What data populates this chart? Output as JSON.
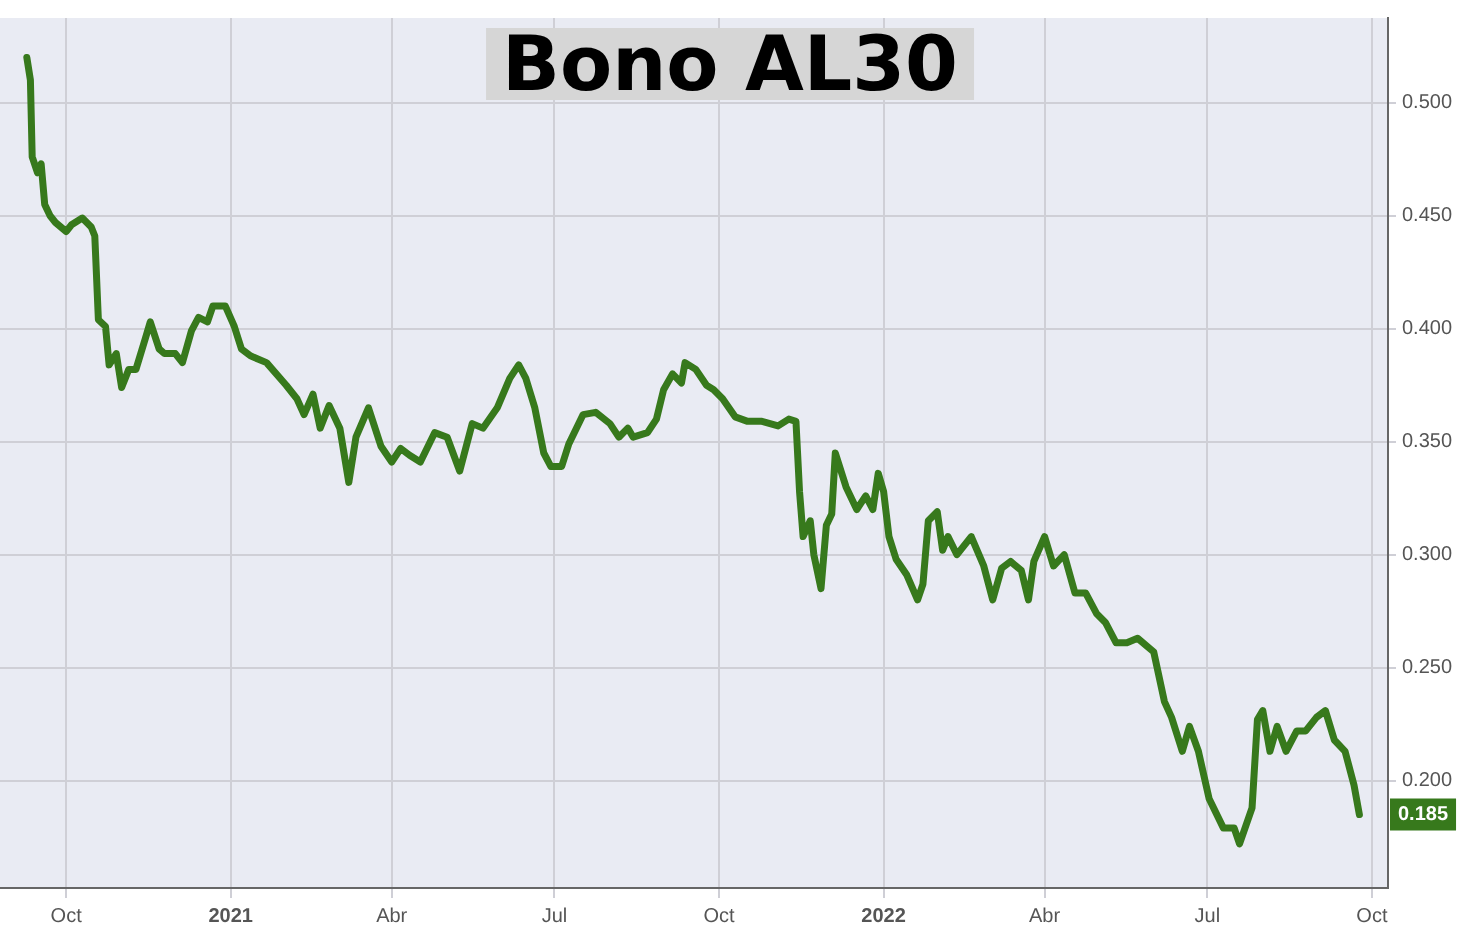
{
  "chart_data": {
    "type": "line",
    "title": "Bono AL30",
    "x": [
      "2020-09-09",
      "2020-09-11",
      "2020-09-12",
      "2020-09-15",
      "2020-09-17",
      "2020-09-19",
      "2020-09-22",
      "2020-09-25",
      "2020-10-01",
      "2020-10-04",
      "2020-10-10",
      "2020-10-15",
      "2020-10-17",
      "2020-10-19",
      "2020-10-23",
      "2020-10-25",
      "2020-10-29",
      "2020-11-01",
      "2020-11-05",
      "2020-11-09",
      "2020-11-14",
      "2020-11-17",
      "2020-11-22",
      "2020-11-25",
      "2020-12-01",
      "2020-12-05",
      "2020-12-10",
      "2020-12-14",
      "2020-12-19",
      "2020-12-22",
      "2020-12-29",
      "2021-01-03",
      "2021-01-07",
      "2021-01-12",
      "2021-01-21",
      "2021-02-01",
      "2021-02-07",
      "2021-02-11",
      "2021-02-16",
      "2021-02-20",
      "2021-02-25",
      "2021-03-03",
      "2021-03-08",
      "2021-03-12",
      "2021-03-19",
      "2021-03-26",
      "2021-04-01",
      "2021-04-06",
      "2021-04-11",
      "2021-04-17",
      "2021-04-25",
      "2021-05-02",
      "2021-05-09",
      "2021-05-16",
      "2021-05-22",
      "2021-05-30",
      "2021-06-06",
      "2021-06-11",
      "2021-06-15",
      "2021-06-20",
      "2021-06-25",
      "2021-06-29",
      "2021-07-05",
      "2021-07-09",
      "2021-07-17",
      "2021-07-24",
      "2021-08-01",
      "2021-08-06",
      "2021-08-11",
      "2021-08-14",
      "2021-08-22",
      "2021-08-27",
      "2021-08-31",
      "2021-09-05",
      "2021-09-10",
      "2021-09-12",
      "2021-09-18",
      "2021-09-24",
      "2021-09-28",
      "2021-10-03",
      "2021-10-10",
      "2021-10-17",
      "2021-10-25",
      "2021-11-03",
      "2021-11-09",
      "2021-11-13",
      "2021-11-15",
      "2021-11-17",
      "2021-11-21",
      "2021-11-23",
      "2021-11-27",
      "2021-11-30",
      "2021-12-03",
      "2021-12-05",
      "2021-12-11",
      "2021-12-17",
      "2021-12-22",
      "2021-12-26",
      "2021-12-29",
      "2022-01-01",
      "2022-01-04",
      "2022-01-08",
      "2022-01-14",
      "2022-01-20",
      "2022-01-23",
      "2022-01-26",
      "2022-01-31",
      "2022-02-03",
      "2022-02-06",
      "2022-02-11",
      "2022-02-19",
      "2022-02-26",
      "2022-03-03",
      "2022-03-08",
      "2022-03-13",
      "2022-03-19",
      "2022-03-23",
      "2022-03-26",
      "2022-04-01",
      "2022-04-06",
      "2022-04-12",
      "2022-04-18",
      "2022-04-24",
      "2022-04-30",
      "2022-05-05",
      "2022-05-11",
      "2022-05-17",
      "2022-05-23",
      "2022-06-01",
      "2022-06-07",
      "2022-06-11",
      "2022-06-17",
      "2022-06-21",
      "2022-06-26",
      "2022-07-02",
      "2022-07-10",
      "2022-07-16",
      "2022-07-19",
      "2022-07-26",
      "2022-07-29",
      "2022-08-01",
      "2022-08-05",
      "2022-08-09",
      "2022-08-14",
      "2022-08-20",
      "2022-08-25",
      "2022-08-31",
      "2022-09-05",
      "2022-09-10",
      "2022-09-16",
      "2022-09-21",
      "2022-09-24"
    ],
    "series": [
      {
        "color": "#37791c",
        "values": [
          0.52,
          0.51,
          0.476,
          0.469,
          0.473,
          0.455,
          0.45,
          0.447,
          0.443,
          0.446,
          0.449,
          0.445,
          0.441,
          0.404,
          0.401,
          0.384,
          0.389,
          0.374,
          0.382,
          0.382,
          0.395,
          0.403,
          0.391,
          0.389,
          0.389,
          0.385,
          0.399,
          0.405,
          0.403,
          0.41,
          0.41,
          0.401,
          0.391,
          0.388,
          0.385,
          0.375,
          0.369,
          0.362,
          0.371,
          0.356,
          0.366,
          0.356,
          0.332,
          0.352,
          0.365,
          0.348,
          0.341,
          0.347,
          0.344,
          0.341,
          0.354,
          0.352,
          0.337,
          0.358,
          0.356,
          0.365,
          0.378,
          0.384,
          0.378,
          0.365,
          0.345,
          0.339,
          0.339,
          0.349,
          0.362,
          0.363,
          0.358,
          0.352,
          0.356,
          0.352,
          0.354,
          0.36,
          0.373,
          0.38,
          0.376,
          0.385,
          0.382,
          0.375,
          0.373,
          0.369,
          0.361,
          0.359,
          0.359,
          0.357,
          0.36,
          0.359,
          0.328,
          0.308,
          0.315,
          0.3,
          0.285,
          0.313,
          0.318,
          0.345,
          0.33,
          0.32,
          0.326,
          0.32,
          0.336,
          0.328,
          0.308,
          0.298,
          0.291,
          0.28,
          0.287,
          0.315,
          0.319,
          0.302,
          0.308,
          0.3,
          0.308,
          0.295,
          0.28,
          0.294,
          0.297,
          0.293,
          0.28,
          0.297,
          0.308,
          0.295,
          0.3,
          0.283,
          0.283,
          0.274,
          0.27,
          0.261,
          0.261,
          0.263,
          0.257,
          0.235,
          0.228,
          0.213,
          0.224,
          0.213,
          0.192,
          0.179,
          0.179,
          0.172,
          0.188,
          0.227,
          0.231,
          0.213,
          0.224,
          0.213,
          0.222,
          0.222,
          0.228,
          0.231,
          0.218,
          0.213,
          0.198,
          0.185
        ]
      }
    ],
    "xlim": [
      "2020-08-25",
      "2022-10-10"
    ],
    "xticks": [
      {
        "value": "2020-10-01",
        "label": "Oct"
      },
      {
        "value": "2021-01-01",
        "label": "2021"
      },
      {
        "value": "2021-04-01",
        "label": "Abr"
      },
      {
        "value": "2021-07-01",
        "label": "Jul"
      },
      {
        "value": "2021-10-01",
        "label": "Oct"
      },
      {
        "value": "2022-01-01",
        "label": "2022"
      },
      {
        "value": "2022-04-01",
        "label": "Abr"
      },
      {
        "value": "2022-07-01",
        "label": "Jul"
      },
      {
        "value": "2022-10-01",
        "label": "Oct"
      }
    ],
    "ylim": [
      0.1525,
      0.5375
    ],
    "yticks": [
      {
        "value": 0.2,
        "label": "0.200"
      },
      {
        "value": 0.25,
        "label": "0.250"
      },
      {
        "value": 0.3,
        "label": "0.300"
      },
      {
        "value": 0.35,
        "label": "0.350"
      },
      {
        "value": 0.4,
        "label": "0.400"
      },
      {
        "value": 0.45,
        "label": "0.450"
      },
      {
        "value": 0.5,
        "label": "0.500"
      }
    ],
    "annotations": [
      {
        "text": "0.185",
        "x": "2022-09-24",
        "y": 0.185
      }
    ],
    "grid": true,
    "legend": false,
    "marker": "none",
    "line_style": "solid"
  }
}
